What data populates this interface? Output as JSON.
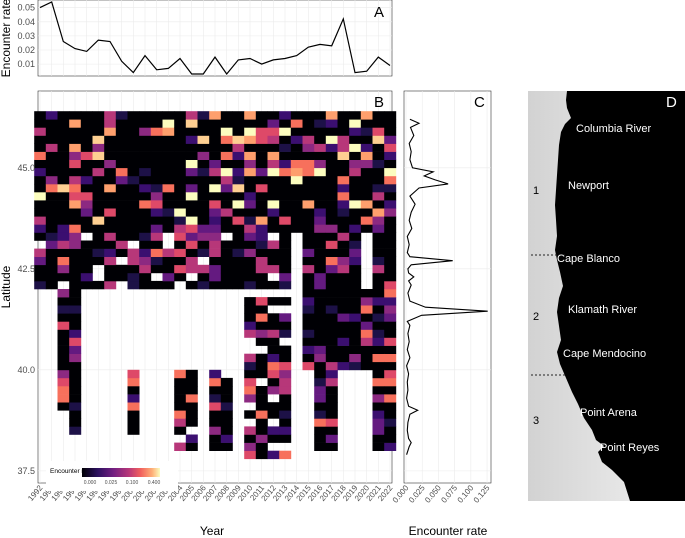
{
  "chart_data": [
    {
      "panel": "A",
      "type": "line",
      "ylabel": "Encounter rate",
      "x": [
        1992,
        1993,
        1994,
        1995,
        1996,
        1997,
        1998,
        1999,
        2000,
        2001,
        2002,
        2003,
        2004,
        2005,
        2006,
        2007,
        2008,
        2009,
        2010,
        2011,
        2012,
        2013,
        2014,
        2015,
        2016,
        2017,
        2018,
        2019,
        2020,
        2021,
        2022
      ],
      "y": [
        0.05,
        0.054,
        0.026,
        0.021,
        0.019,
        0.027,
        0.026,
        0.012,
        0.004,
        0.016,
        0.006,
        0.007,
        0.014,
        0.003,
        0.003,
        0.015,
        0.003,
        0.013,
        0.014,
        0.01,
        0.013,
        0.014,
        0.016,
        0.022,
        0.024,
        0.023,
        0.042,
        0.004,
        0.005,
        0.015,
        0.009
      ],
      "ylim": [
        0.003,
        0.054
      ],
      "yticks": [
        "0.01",
        "0.02",
        "0.03",
        "0.04",
        "0.05"
      ]
    },
    {
      "panel": "B",
      "type": "heatmap",
      "xlabel": "Year",
      "ylabel": "Latitude",
      "ylim": [
        37.2,
        46.9
      ],
      "yticks": [
        "37.5",
        "40.0",
        "42.5",
        "45.0"
      ],
      "xticks": [
        "1992",
        "1993",
        "1994",
        "1995",
        "1996",
        "1997",
        "1998",
        "1999",
        "2000",
        "2001",
        "2002",
        "2003",
        "2004",
        "2005",
        "2006",
        "2007",
        "2008",
        "2009",
        "2010",
        "2011",
        "2012",
        "2013",
        "2014",
        "2015",
        "2016",
        "2017",
        "2018",
        "2019",
        "2020",
        "2021",
        "2022"
      ],
      "legend_title": "Encounter rate",
      "legend_ticks": [
        "0.000",
        "0.025",
        "0.100",
        "0.400"
      ]
    },
    {
      "panel": "C",
      "type": "line",
      "xlabel": "Encounter rate",
      "xticks": [
        "0.000",
        "0.025",
        "0.050",
        "0.075",
        "0.100",
        "0.125"
      ],
      "xlim": [
        0,
        0.128
      ],
      "profile": [
        [
          37.9,
          0.001
        ],
        [
          38.1,
          0.005
        ],
        [
          38.2,
          0.008
        ],
        [
          38.3,
          0.004
        ],
        [
          38.5,
          0.002
        ],
        [
          38.7,
          0.003
        ],
        [
          38.9,
          0.006
        ],
        [
          39.0,
          0.018
        ],
        [
          39.1,
          0.004
        ],
        [
          39.3,
          0.001
        ],
        [
          39.5,
          0.003
        ],
        [
          39.7,
          0.002
        ],
        [
          39.9,
          0.004
        ],
        [
          40.1,
          0.001
        ],
        [
          40.3,
          0.006
        ],
        [
          40.5,
          0.002
        ],
        [
          40.7,
          0.005
        ],
        [
          40.9,
          0.003
        ],
        [
          41.1,
          0.006
        ],
        [
          41.2,
          0.002
        ],
        [
          41.35,
          0.024
        ],
        [
          41.45,
          0.126
        ],
        [
          41.55,
          0.03
        ],
        [
          41.7,
          0.006
        ],
        [
          41.9,
          0.003
        ],
        [
          42.1,
          0.008
        ],
        [
          42.2,
          0.004
        ],
        [
          42.3,
          0.012
        ],
        [
          42.4,
          0.004
        ],
        [
          42.5,
          0.003
        ],
        [
          42.6,
          0.008
        ],
        [
          42.7,
          0.072
        ],
        [
          42.8,
          0.006
        ],
        [
          42.9,
          0.002
        ],
        [
          43.1,
          0.005
        ],
        [
          43.3,
          0.002
        ],
        [
          43.5,
          0.009
        ],
        [
          43.7,
          0.005
        ],
        [
          43.9,
          0.008
        ],
        [
          44.1,
          0.014
        ],
        [
          44.3,
          0.006
        ],
        [
          44.5,
          0.02
        ],
        [
          44.6,
          0.065
        ],
        [
          44.7,
          0.045
        ],
        [
          44.8,
          0.028
        ],
        [
          44.9,
          0.042
        ],
        [
          45.0,
          0.01
        ],
        [
          45.2,
          0.006
        ],
        [
          45.4,
          0.008
        ],
        [
          45.6,
          0.005
        ],
        [
          45.8,
          0.012
        ],
        [
          46.0,
          0.007
        ],
        [
          46.1,
          0.02
        ],
        [
          46.2,
          0.006
        ]
      ]
    }
  ],
  "panel_labels": {
    "a": "A",
    "b": "B",
    "c": "C",
    "d": "D"
  },
  "map": {
    "places": [
      {
        "name": "Columbia River",
        "lat": 46.25
      },
      {
        "name": "Newport",
        "lat": 44.63
      },
      {
        "name": "Cape Blanco",
        "lat": 42.84
      },
      {
        "name": "Klamath River",
        "lat": 41.55
      },
      {
        "name": "Cape Mendocino",
        "lat": 40.44
      },
      {
        "name": "Point Arena",
        "lat": 38.95
      },
      {
        "name": "Point Reyes",
        "lat": 38.0
      }
    ],
    "regions": [
      "1",
      "2",
      "3"
    ]
  }
}
